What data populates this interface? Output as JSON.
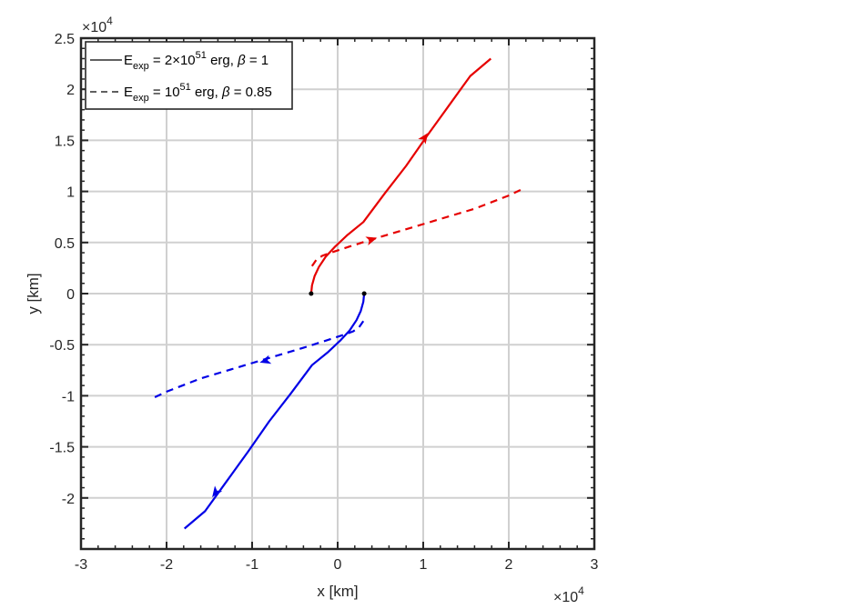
{
  "chart_data": {
    "type": "line",
    "xlabel": "x [km]",
    "ylabel": "y [km]",
    "x_exponent_label": "×10",
    "x_exponent_power": "4",
    "y_exponent_label": "×10",
    "y_exponent_power": "4",
    "xlim": [
      -3,
      3
    ],
    "ylim": [
      -2.5,
      2.5
    ],
    "x_scale_factor": 10000,
    "y_scale_factor": 10000,
    "xticks": [
      -3,
      -2,
      -1,
      0,
      1,
      2,
      3
    ],
    "yticks": [
      -2,
      -1.5,
      -1,
      -0.5,
      0,
      0.5,
      1,
      1.5,
      2,
      2.5
    ],
    "grid": true,
    "legend_location": "top-left",
    "legend": [
      {
        "style": "solid",
        "text_parts": [
          "E",
          "exp",
          " = 2×10",
          "51",
          " erg, ",
          "β",
          " = 1"
        ]
      },
      {
        "style": "dashed",
        "text_parts": [
          "E",
          "exp",
          " = 10",
          "51",
          " erg, ",
          "β",
          " = 0.85"
        ]
      }
    ],
    "colors": {
      "red": "#e60000",
      "blue": "#0000e6",
      "start_point": "#000000",
      "grid": "#d0d0d0",
      "frame": "#262626"
    },
    "series": [
      {
        "style": "solid",
        "color": "red",
        "x": [
          -0.31,
          -0.3,
          -0.27,
          -0.22,
          -0.14,
          -0.03,
          0.11,
          0.3,
          0.55,
          0.8,
          1.05,
          1.3,
          1.55,
          1.79
        ],
        "y": [
          0,
          0.08,
          0.17,
          0.26,
          0.36,
          0.46,
          0.57,
          0.7,
          0.98,
          1.25,
          1.55,
          1.84,
          2.13,
          2.3
        ],
        "arrow_at": [
          1.02,
          1.53
        ]
      },
      {
        "style": "dashed",
        "color": "red",
        "x": [
          -0.3,
          -0.25,
          -0.18,
          -0.08,
          0.1,
          0.4,
          0.8,
          1.2,
          1.6,
          2.0,
          2.15
        ],
        "y": [
          0.27,
          0.33,
          0.37,
          0.4,
          0.45,
          0.53,
          0.63,
          0.73,
          0.83,
          0.96,
          1.02
        ],
        "arrow_at": [
          0.4,
          0.53
        ]
      },
      {
        "style": "solid",
        "color": "blue",
        "x": [
          0.31,
          0.3,
          0.27,
          0.22,
          0.14,
          0.03,
          -0.11,
          -0.3,
          -0.55,
          -0.8,
          -1.05,
          -1.3,
          -1.55,
          -1.79
        ],
        "y": [
          0,
          -0.08,
          -0.17,
          -0.26,
          -0.36,
          -0.46,
          -0.57,
          -0.7,
          -0.98,
          -1.25,
          -1.55,
          -1.84,
          -2.13,
          -2.3
        ],
        "arrow_at": [
          -1.43,
          -1.95
        ]
      },
      {
        "style": "dashed",
        "color": "blue",
        "x": [
          0.3,
          0.25,
          0.18,
          0.08,
          -0.1,
          -0.4,
          -0.8,
          -1.2,
          -1.6,
          -2.0,
          -2.15
        ],
        "y": [
          -0.27,
          -0.33,
          -0.37,
          -0.4,
          -0.45,
          -0.53,
          -0.63,
          -0.73,
          -0.83,
          -0.96,
          -1.02
        ],
        "arrow_at": [
          -0.85,
          -0.66
        ]
      }
    ],
    "start_points": [
      {
        "x": -0.31,
        "y": 0
      },
      {
        "x": 0.31,
        "y": 0
      }
    ]
  }
}
